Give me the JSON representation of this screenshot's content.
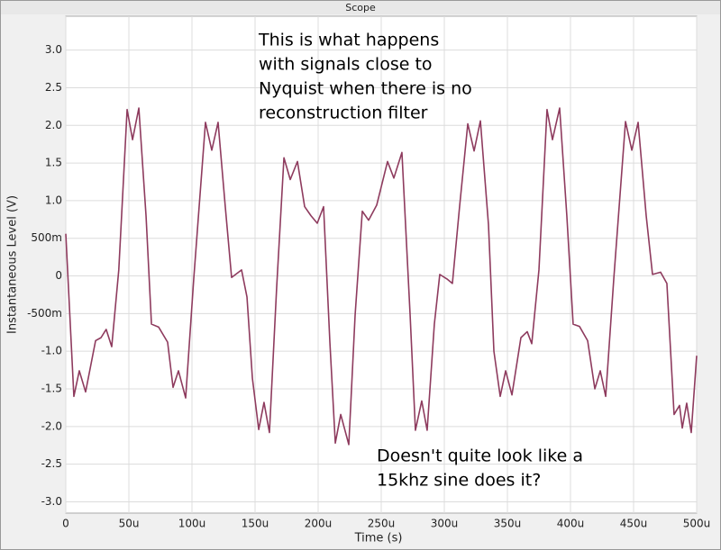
{
  "chart_data": {
    "type": "line",
    "title": "Scope",
    "xlabel": "Time (s)",
    "ylabel": "Instantaneous Level (V)",
    "annotations": [
      [
        "This is what happens",
        "with signals close to",
        "Nyquist when there is no",
        "reconstruction filter"
      ],
      [
        "Doesn't quite look like a",
        "15khz sine does it?"
      ]
    ],
    "xlim": [
      0,
      500
    ],
    "ylim": [
      -3.15,
      3.45
    ],
    "xticks": [
      0,
      {
        "value": 50,
        "label": "50u"
      },
      {
        "value": 100,
        "label": "100u"
      },
      {
        "value": 150,
        "label": "150u"
      },
      {
        "value": 200,
        "label": "200u"
      },
      {
        "value": 250,
        "label": "250u"
      },
      {
        "value": 300,
        "label": "300u"
      },
      {
        "value": 350,
        "label": "350u"
      },
      {
        "value": 400,
        "label": "400u"
      },
      {
        "value": 450,
        "label": "450u"
      },
      {
        "value": 500,
        "label": "500u"
      }
    ],
    "yticks": [
      {
        "value": -3,
        "label": "-3.0"
      },
      {
        "value": -2.5,
        "label": "-2.5"
      },
      {
        "value": -2,
        "label": "-2.0"
      },
      {
        "value": -1.5,
        "label": "-1.5"
      },
      {
        "value": -1,
        "label": "-1.0"
      },
      {
        "value": -0.5,
        "label": "-500m"
      },
      0,
      {
        "value": 0.5,
        "label": "500m"
      },
      {
        "value": 1,
        "label": "1.0"
      },
      {
        "value": 1.5,
        "label": "1.5"
      },
      {
        "value": 2,
        "label": "2.0"
      },
      {
        "value": 2.5,
        "label": "2.5"
      },
      {
        "value": 3,
        "label": "3.0"
      }
    ],
    "grid": true,
    "series": [
      {
        "color": "#8e3b5e",
        "x": [
          0,
          6.4,
          10.7,
          15.7,
          23.6,
          27.9,
          32,
          36.4,
          42,
          48.6,
          52.9,
          57.9,
          63.6,
          67.9,
          73.6,
          80.7,
          85,
          89.3,
          95,
          101.4,
          110.7,
          115.7,
          120.7,
          126.4,
          131.4,
          139.3,
          143.6,
          147.9,
          152.9,
          157.1,
          161.4,
          167.1,
          172.9,
          177.9,
          183.6,
          189.3,
          194.3,
          199.3,
          204.3,
          209.3,
          213.6,
          217.9,
          224.3,
          229.3,
          235,
          240,
          246.4,
          255,
          260,
          266.4,
          272.9,
          277.1,
          282.1,
          286.4,
          292.1,
          296.4,
          302.1,
          306.4,
          312.1,
          318.6,
          323.6,
          328.6,
          335,
          339.3,
          344.3,
          348.6,
          353.6,
          360.7,
          365.7,
          369.3,
          375,
          381.4,
          385.7,
          391.4,
          397.1,
          402.1,
          407.1,
          413.6,
          419.3,
          423.6,
          427.9,
          434.3,
          443.6,
          448.6,
          453.6,
          460,
          465,
          471.4,
          476.4,
          482.1,
          486.4,
          488.6,
          492.1,
          495.7,
          500
        ],
        "values": [
          0.56,
          -1.6,
          -1.26,
          -1.54,
          -0.86,
          -0.82,
          -0.71,
          -0.94,
          0.08,
          2.21,
          1.81,
          2.23,
          0.8,
          -0.64,
          -0.68,
          -0.88,
          -1.48,
          -1.26,
          -1.62,
          -0.04,
          2.04,
          1.67,
          2.04,
          0.92,
          -0.02,
          0.08,
          -0.28,
          -1.36,
          -2.04,
          -1.68,
          -2.08,
          -0.16,
          1.57,
          1.28,
          1.52,
          0.92,
          0.8,
          0.7,
          0.92,
          -0.88,
          -2.22,
          -1.84,
          -2.24,
          -0.52,
          0.86,
          0.74,
          0.94,
          1.52,
          1.3,
          1.64,
          -0.52,
          -2.05,
          -1.66,
          -2.05,
          -0.64,
          0.02,
          -0.04,
          -0.1,
          0.92,
          2.02,
          1.66,
          2.06,
          0.68,
          -1.0,
          -1.6,
          -1.26,
          -1.58,
          -0.82,
          -0.74,
          -0.9,
          0.08,
          2.21,
          1.81,
          2.23,
          0.8,
          -0.64,
          -0.67,
          -0.86,
          -1.5,
          -1.26,
          -1.6,
          -0.04,
          2.05,
          1.67,
          2.04,
          0.8,
          0.02,
          0.05,
          -0.1,
          -1.84,
          -1.72,
          -2.02,
          -1.69,
          -2.08,
          -1.06
        ]
      }
    ]
  }
}
